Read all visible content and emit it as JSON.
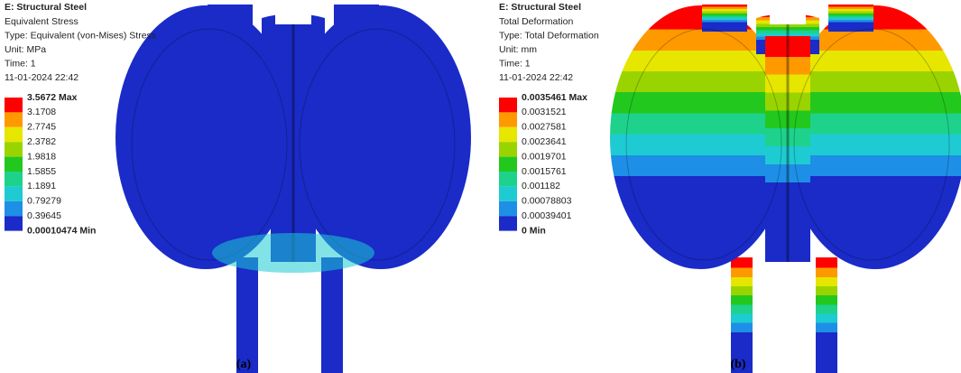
{
  "panels": [
    {
      "header": {
        "title": "E: Structural Steel",
        "lines": [
          "Equivalent Stress",
          "Type: Equivalent (von-Mises) Stress",
          "Unit: MPa",
          "Time: 1",
          "11-01-2024 22:42"
        ]
      },
      "legend": {
        "labels": [
          "3.5672 Max",
          "3.1708",
          "2.7745",
          "2.3782",
          "1.9818",
          "1.5855",
          "1.1891",
          "0.79279",
          "0.39645",
          "0.00010474 Min"
        ],
        "colors": [
          "#ff0000",
          "#ff9900",
          "#e6e600",
          "#9ad400",
          "#22c81e",
          "#1ed28c",
          "#1ecbd2",
          "#1e8fe6",
          "#1a2bc8"
        ]
      },
      "caption": "(a)"
    },
    {
      "header": {
        "title": "E: Structural Steel",
        "lines": [
          "Total Deformation",
          "Type: Total Deformation",
          "Unit: mm",
          "Time: 1",
          "11-01-2024 22:42"
        ]
      },
      "legend": {
        "labels": [
          "0.0035461 Max",
          "0.0031521",
          "0.0027581",
          "0.0023641",
          "0.0019701",
          "0.0015761",
          "0.001182",
          "0.00078803",
          "0.00039401",
          "0 Min"
        ],
        "colors": [
          "#ff0000",
          "#ff9900",
          "#e6e600",
          "#9ad400",
          "#22c81e",
          "#1ed28c",
          "#1ecbd2",
          "#1e8fe6",
          "#1a2bc8"
        ]
      },
      "caption": "(b)"
    }
  ]
}
